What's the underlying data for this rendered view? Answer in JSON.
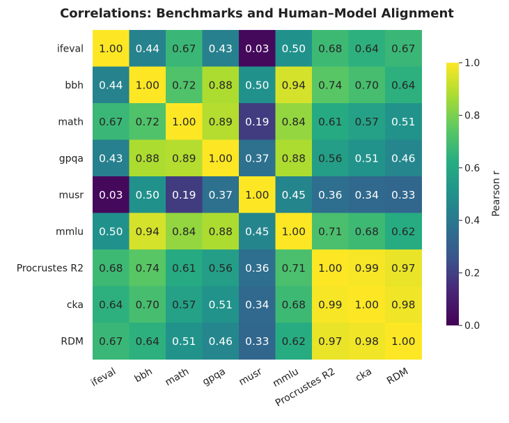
{
  "chart_data": {
    "type": "heatmap",
    "title": "Correlations: Benchmarks and Human–Model Alignment",
    "rows": [
      "ifeval",
      "bbh",
      "math",
      "gpqa",
      "musr",
      "mmlu",
      "Procrustes R2",
      "cka",
      "RDM"
    ],
    "columns": [
      "ifeval",
      "bbh",
      "math",
      "gpqa",
      "musr",
      "mmlu",
      "Procrustes R2",
      "cka",
      "RDM"
    ],
    "values": [
      [
        1.0,
        0.44,
        0.67,
        0.43,
        0.03,
        0.5,
        0.68,
        0.64,
        0.67
      ],
      [
        0.44,
        1.0,
        0.72,
        0.88,
        0.5,
        0.94,
        0.74,
        0.7,
        0.64
      ],
      [
        0.67,
        0.72,
        1.0,
        0.89,
        0.19,
        0.84,
        0.61,
        0.57,
        0.51
      ],
      [
        0.43,
        0.88,
        0.89,
        1.0,
        0.37,
        0.88,
        0.56,
        0.51,
        0.46
      ],
      [
        0.03,
        0.5,
        0.19,
        0.37,
        1.0,
        0.45,
        0.36,
        0.34,
        0.33
      ],
      [
        0.5,
        0.94,
        0.84,
        0.88,
        0.45,
        1.0,
        0.71,
        0.68,
        0.62
      ],
      [
        0.68,
        0.74,
        0.61,
        0.56,
        0.36,
        0.71,
        1.0,
        0.99,
        0.97
      ],
      [
        0.64,
        0.7,
        0.57,
        0.51,
        0.34,
        0.68,
        0.99,
        1.0,
        0.98
      ],
      [
        0.67,
        0.64,
        0.51,
        0.46,
        0.33,
        0.62,
        0.97,
        0.98,
        1.0
      ]
    ],
    "value_format": "0.00",
    "colormap": "viridis",
    "vmin": 0.0,
    "vmax": 1.0,
    "colorbar": {
      "label": "Pearson r",
      "ticks": [
        0.0,
        0.2,
        0.4,
        0.6,
        0.8,
        1.0
      ],
      "tick_labels": [
        "0.0",
        "0.2",
        "0.4",
        "0.6",
        "0.8",
        "1.0"
      ]
    },
    "xtick_rotation": "30 degrees",
    "grid": false
  }
}
